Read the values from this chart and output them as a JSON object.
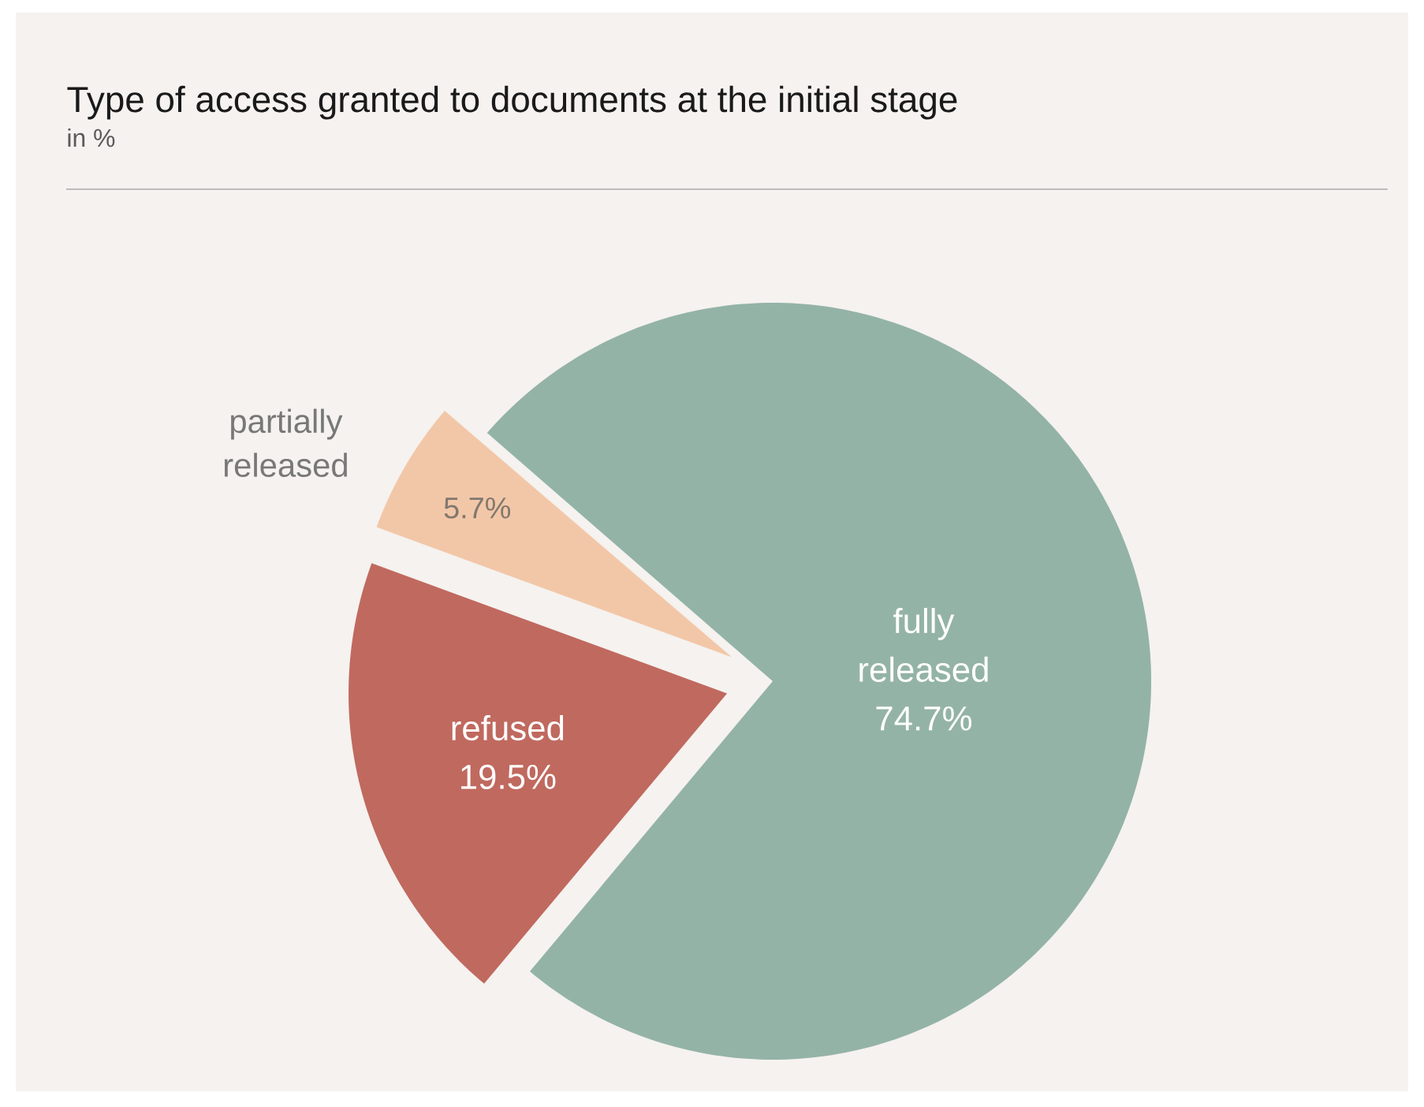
{
  "chart_data": {
    "type": "pie",
    "title": "Type of access granted to documents at the initial stage",
    "subtitle": "in %",
    "categories": [
      "fully released",
      "refused",
      "partially released"
    ],
    "values": [
      74.7,
      19.5,
      5.7
    ],
    "value_labels": [
      "74.7%",
      "19.5%",
      "5.7%"
    ],
    "colors": [
      "#94b3a7",
      "#c0695f",
      "#f2c7a8"
    ]
  }
}
